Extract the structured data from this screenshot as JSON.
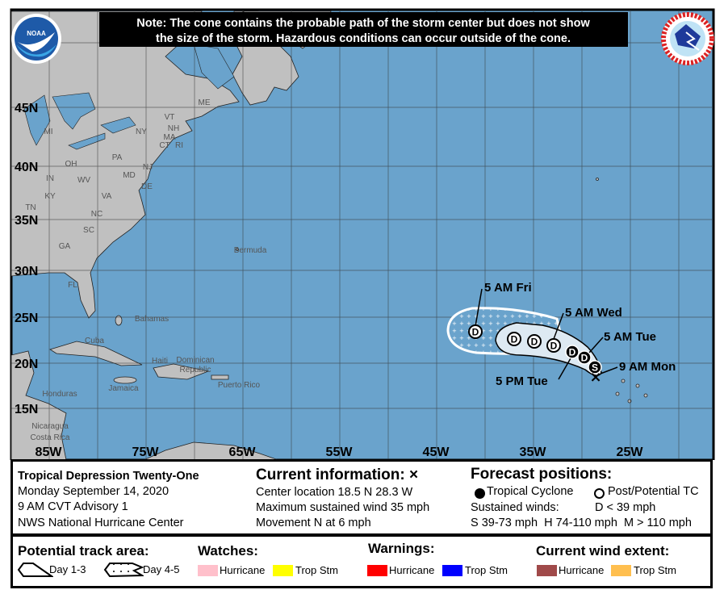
{
  "note": {
    "line1": "Note: The cone contains the probable path of the storm center but does not show",
    "line2": "the size of the storm. Hazardous conditions can occur outside of the cone."
  },
  "logos": {
    "left": "NOAA",
    "right": "NATIONAL WEATHER SERVICE"
  },
  "lat_labels": [
    "45N",
    "40N",
    "35N",
    "30N",
    "25N",
    "20N",
    "15N"
  ],
  "lon_labels": [
    "85W",
    "75W",
    "65W",
    "55W",
    "45W",
    "35W",
    "25W"
  ],
  "map_labels": {
    "states": [
      "ME",
      "VT",
      "NH",
      "MA",
      "CT",
      "RI",
      "NY",
      "MI",
      "PA",
      "OH",
      "IN",
      "NJ",
      "MD",
      "DE",
      "WV",
      "VA",
      "KY",
      "TN",
      "NC",
      "SC",
      "GA",
      "FL"
    ],
    "places": [
      "Bermuda",
      "Bahamas",
      "Cuba",
      "Dominican",
      "Republic",
      "Haiti",
      "Puerto Rico",
      "Jamaica",
      "Honduras",
      "Nicaragua",
      "Costa Rica"
    ]
  },
  "track_labels": {
    "fri": "5 AM Fri",
    "wed": "5 AM Wed",
    "tue_am": "5 AM Tue",
    "mon": "9 AM Mon",
    "tue_pm": "5 PM Tue"
  },
  "track_points": [
    {
      "symbol": "S",
      "type": "tropical-cyclone"
    },
    {
      "symbol": "D",
      "type": "tropical-cyclone"
    },
    {
      "symbol": "D",
      "type": "tropical-cyclone"
    },
    {
      "symbol": "D",
      "type": "post-potential"
    },
    {
      "symbol": "D",
      "type": "post-potential"
    },
    {
      "symbol": "D",
      "type": "post-potential"
    },
    {
      "symbol": "D",
      "type": "post-potential"
    }
  ],
  "info": {
    "storm_name": "Tropical Depression Twenty-One",
    "date": "Monday September 14, 2020",
    "advisory": "9 AM CVT Advisory 1",
    "center": "NWS National Hurricane Center",
    "current_title": "Current information: ×",
    "location": "Center location 18.5 N 28.3 W",
    "max_wind": "Maximum sustained wind 35 mph",
    "movement": "Movement N at 6 mph",
    "forecast_title": "Forecast positions:",
    "tc_label": "Tropical Cyclone",
    "ptc_label": "Post/Potential TC",
    "sustained": "Sustained winds:",
    "d_def": "D < 39 mph",
    "shm_def": "S 39-73 mph  H 74-110 mph  M > 110 mph"
  },
  "legend": {
    "track_title": "Potential track area:",
    "day13": "Day 1-3",
    "day45": "Day 4-5",
    "watches_title": "Watches:",
    "warnings_title": "Warnings:",
    "wind_title": "Current wind extent:",
    "hurricane": "Hurricane",
    "trop_stm": "Trop Stm"
  },
  "colors": {
    "ocean": "#6aa3cc",
    "land": "#c0c0c0",
    "cone": "#dde9f2",
    "watch_hurricane": "#ffc0cb",
    "watch_tropstm": "#ffff00",
    "warn_hurricane": "#ff0000",
    "warn_tropstm": "#0000ff",
    "wind_hurricane": "#a04a4a",
    "wind_tropstm": "#ffbf4f"
  }
}
